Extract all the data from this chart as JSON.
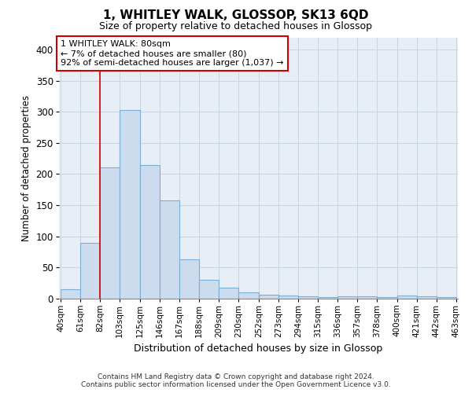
{
  "title": "1, WHITLEY WALK, GLOSSOP, SK13 6QD",
  "subtitle": "Size of property relative to detached houses in Glossop",
  "xlabel": "Distribution of detached houses by size in Glossop",
  "ylabel": "Number of detached properties",
  "footer_line1": "Contains HM Land Registry data © Crown copyright and database right 2024.",
  "footer_line2": "Contains public sector information licensed under the Open Government Licence v3.0.",
  "bar_color": "#ccdcee",
  "bar_edge_color": "#7aafd4",
  "grid_color": "#c8d4e4",
  "bg_color": "#e8eef6",
  "annotation_box_color": "#cc0000",
  "property_line_x": 82,
  "annotation_text_line1": "1 WHITLEY WALK: 80sqm",
  "annotation_text_line2": "← 7% of detached houses are smaller (80)",
  "annotation_text_line3": "92% of semi-detached houses are larger (1,037) →",
  "bins": [
    40,
    61,
    82,
    103,
    125,
    146,
    167,
    188,
    209,
    230,
    252,
    273,
    294,
    315,
    336,
    357,
    378,
    400,
    421,
    442,
    463
  ],
  "bin_labels": [
    "40sqm",
    "61sqm",
    "82sqm",
    "103sqm",
    "125sqm",
    "146sqm",
    "167sqm",
    "188sqm",
    "209sqm",
    "230sqm",
    "252sqm",
    "273sqm",
    "294sqm",
    "315sqm",
    "336sqm",
    "357sqm",
    "378sqm",
    "400sqm",
    "421sqm",
    "442sqm",
    "463sqm"
  ],
  "counts": [
    15,
    89,
    211,
    303,
    215,
    158,
    63,
    30,
    17,
    9,
    6,
    4,
    3,
    2,
    3,
    3,
    2,
    4,
    3,
    2
  ],
  "ylim": [
    0,
    420
  ],
  "xlim": [
    38,
    465
  ]
}
